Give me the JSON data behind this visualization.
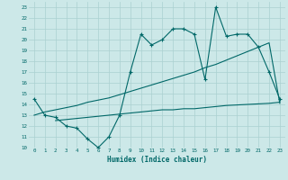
{
  "title": "",
  "xlabel": "Humidex (Indice chaleur)",
  "xlim": [
    -0.5,
    23.5
  ],
  "ylim": [
    10,
    23.5
  ],
  "yticks": [
    10,
    11,
    12,
    13,
    14,
    15,
    16,
    17,
    18,
    19,
    20,
    21,
    22,
    23
  ],
  "xticks": [
    0,
    1,
    2,
    3,
    4,
    5,
    6,
    7,
    8,
    9,
    10,
    11,
    12,
    13,
    14,
    15,
    16,
    17,
    18,
    19,
    20,
    21,
    22,
    23
  ],
  "bg_color": "#cce8e8",
  "line_color": "#006868",
  "grid_color": "#aad0d0",
  "line1_x": [
    0,
    1,
    2,
    3,
    4,
    5,
    6,
    7,
    8,
    9,
    10,
    11,
    12,
    13,
    14,
    15,
    16,
    17,
    18,
    19,
    20,
    21,
    22,
    23
  ],
  "line1_y": [
    14.5,
    13.0,
    12.8,
    12.0,
    11.8,
    10.8,
    10.0,
    11.0,
    13.0,
    17.0,
    20.5,
    19.5,
    20.0,
    21.0,
    21.0,
    20.5,
    16.3,
    23.0,
    20.3,
    20.5,
    20.5,
    19.3,
    17.0,
    14.5
  ],
  "line2_x": [
    0,
    1,
    2,
    3,
    4,
    5,
    6,
    7,
    8,
    9,
    10,
    11,
    12,
    13,
    14,
    15,
    16,
    17,
    18,
    19,
    20,
    21,
    22,
    23
  ],
  "line2_y": [
    13.0,
    13.3,
    13.5,
    13.7,
    13.9,
    14.2,
    14.4,
    14.6,
    14.9,
    15.2,
    15.5,
    15.8,
    16.1,
    16.4,
    16.7,
    17.0,
    17.4,
    17.7,
    18.1,
    18.5,
    18.9,
    19.3,
    19.7,
    14.1
  ],
  "line3_x": [
    2,
    3,
    4,
    5,
    6,
    7,
    8,
    9,
    10,
    11,
    12,
    13,
    14,
    15,
    16,
    17,
    18,
    19,
    20,
    21,
    22,
    23
  ],
  "line3_y": [
    12.5,
    12.6,
    12.7,
    12.8,
    12.9,
    13.0,
    13.1,
    13.2,
    13.3,
    13.4,
    13.5,
    13.5,
    13.6,
    13.6,
    13.7,
    13.8,
    13.9,
    13.95,
    14.0,
    14.05,
    14.1,
    14.2
  ]
}
